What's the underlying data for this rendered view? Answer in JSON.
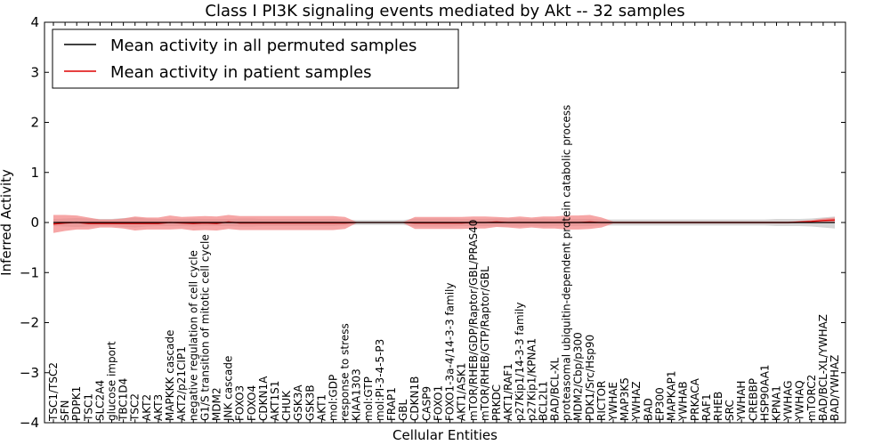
{
  "chart_data": {
    "type": "line",
    "title": "Class I PI3K signaling events mediated by Akt -- 32 samples",
    "xlabel": "Cellular Entities",
    "ylabel": "Inferred Activity",
    "ylim": [
      -4,
      4
    ],
    "yticks": [
      -4,
      -3,
      -2,
      -1,
      0,
      1,
      2,
      3,
      4
    ],
    "ytick_labels": [
      "−4",
      "−3",
      "−2",
      "−1",
      "0",
      "1",
      "2",
      "3",
      "4"
    ],
    "grid": false,
    "legend_position": "top-left",
    "categories": [
      "TSC1/TSC2",
      "SFN",
      "PDPK1",
      "TSC1",
      "SLC2A4",
      "glucose import",
      "TBC1D4",
      "TSC2",
      "AKT2",
      "AKT3",
      "MAPKKK cascade",
      "AKT2/p21CIP1",
      "negative regulation of cell cycle",
      "G1/S transition of mitotic cell cycle",
      "MDM2",
      "JNK cascade",
      "FOXO3",
      "FOXO4",
      "CDKN1A",
      "AKT1S1",
      "CHUK",
      "GSK3A",
      "GSK3B",
      "AKT1",
      "mol:GDP",
      "response to stress",
      "KIAA1303",
      "mol:GTP",
      "mol:PI-3-4-5-P3",
      "FRAP1",
      "GBL",
      "CDKN1B",
      "CASP9",
      "FOXO1",
      "FOXO1-3a-4/14-3-3 family",
      "AKT1/ASK1",
      "mTOR/RHEB/GDP/Raptor/GBL/PRAS40",
      "mTOR/RHEB/GTP/Raptor/GBL",
      "PRKDC",
      "AKT1/RAF1",
      "p27Kip1/14-3-3 family",
      "p27Kip1/KPNA1",
      "BCL2L1",
      "BAD/BCL-XL",
      "proteasomal ubiquitin-dependent protein catabolic process",
      "MDM2/Cbp/p300",
      "PDK1/Src/Hsp90",
      "RICTOR",
      "YWHAE",
      "MAP3K5",
      "YWHAZ",
      "BAD",
      "EP300",
      "MAPKAP1",
      "YWHAB",
      "PRKACA",
      "RAF1",
      "RHEB",
      "SRC",
      "YWHAH",
      "CREBBP",
      "HSP90AA1",
      "KPNA1",
      "YWHAG",
      "YWHAQ",
      "mTORC2",
      "BAD/BCL-XL/YWHAZ",
      "BAD/YWHAZ"
    ],
    "series": [
      {
        "name": "Mean activity in all permuted samples",
        "color": "#000000",
        "values": [
          0,
          0,
          0,
          0,
          0,
          0,
          0,
          0,
          0,
          0,
          0,
          0,
          0,
          0,
          0,
          0,
          0,
          0,
          0,
          0,
          0,
          0,
          0,
          0,
          0,
          0,
          0,
          0,
          0,
          0,
          0,
          0,
          0,
          0,
          0,
          0,
          0,
          0,
          0,
          0,
          0,
          0,
          0,
          0,
          0,
          0,
          0,
          0,
          0,
          0,
          0,
          0,
          0,
          0,
          0,
          0,
          0,
          0,
          0,
          0,
          0,
          0,
          0,
          0,
          0,
          0,
          0,
          0
        ],
        "band": [
          0.07,
          0.08,
          0.09,
          0.08,
          0.07,
          0.07,
          0.09,
          0.1,
          0.08,
          0.07,
          0.07,
          0.07,
          0.08,
          0.07,
          0.07,
          0.07,
          0.08,
          0.08,
          0.07,
          0.07,
          0.07,
          0.07,
          0.07,
          0.07,
          0.07,
          0.06,
          0.05,
          0.05,
          0.05,
          0.05,
          0.05,
          0.08,
          0.08,
          0.08,
          0.08,
          0.07,
          0.07,
          0.07,
          0.08,
          0.08,
          0.08,
          0.07,
          0.08,
          0.07,
          0.07,
          0.07,
          0.07,
          0.06,
          0.06,
          0.06,
          0.06,
          0.06,
          0.06,
          0.06,
          0.06,
          0.06,
          0.06,
          0.06,
          0.06,
          0.06,
          0.06,
          0.06,
          0.07,
          0.07,
          0.07,
          0.08,
          0.1,
          0.12
        ],
        "band_color": "#cccccc"
      },
      {
        "name": "Mean activity in patient samples",
        "color": "#dd0000",
        "values": [
          -0.03,
          -0.01,
          0,
          -0.02,
          -0.02,
          -0.02,
          -0.02,
          -0.02,
          -0.02,
          -0.02,
          0,
          -0.01,
          -0.02,
          -0.01,
          -0.02,
          0.01,
          -0.01,
          -0.01,
          -0.01,
          -0.01,
          -0.01,
          -0.01,
          -0.01,
          -0.01,
          -0.01,
          -0.01,
          0,
          0,
          0,
          0,
          0,
          -0.01,
          -0.01,
          -0.01,
          -0.01,
          -0.01,
          0,
          0,
          0.01,
          0,
          0,
          0,
          0,
          0,
          0,
          0,
          0.01,
          0,
          0,
          0,
          0,
          0,
          0,
          0,
          0,
          0,
          0,
          0,
          0,
          0,
          0,
          0,
          0,
          0,
          0.01,
          0.02,
          0.04,
          0.05
        ],
        "band": [
          0.18,
          0.16,
          0.14,
          0.12,
          0.08,
          0.08,
          0.1,
          0.14,
          0.12,
          0.12,
          0.14,
          0.12,
          0.14,
          0.14,
          0.14,
          0.14,
          0.14,
          0.14,
          0.14,
          0.14,
          0.14,
          0.14,
          0.14,
          0.14,
          0.14,
          0.12,
          0.01,
          0.01,
          0.01,
          0.01,
          0.01,
          0.12,
          0.12,
          0.12,
          0.12,
          0.12,
          0.12,
          0.12,
          0.1,
          0.1,
          0.12,
          0.1,
          0.12,
          0.12,
          0.14,
          0.14,
          0.14,
          0.1,
          0.02,
          0.02,
          0.02,
          0.02,
          0.02,
          0.02,
          0.02,
          0.02,
          0.02,
          0.02,
          0.02,
          0.02,
          0.02,
          0.02,
          0.02,
          0.02,
          0.02,
          0.03,
          0.04,
          0.05
        ],
        "band_color": "#f28080"
      }
    ]
  }
}
